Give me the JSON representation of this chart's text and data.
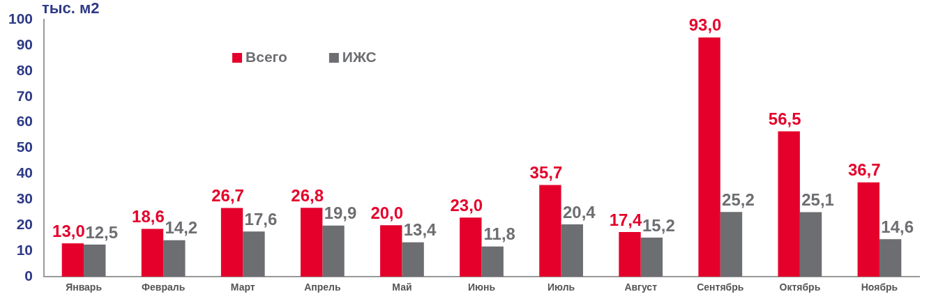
{
  "chart_data": {
    "type": "bar",
    "ylabel": "тыс. м2",
    "categories": [
      "Январь",
      "Февраль",
      "Март",
      "Апрель",
      "Май",
      "Июнь",
      "Июль",
      "Август",
      "Сентябрь",
      "Октябрь",
      "Ноябрь"
    ],
    "series": [
      {
        "name": "Всего",
        "color": "#e4002b",
        "values": [
          13.0,
          18.6,
          26.7,
          26.8,
          20.0,
          23.0,
          35.7,
          17.4,
          93.0,
          56.5,
          36.7
        ],
        "value_labels": [
          "13,0",
          "18,6",
          "26,7",
          "26,8",
          "20,0",
          "23,0",
          "35,7",
          "17,4",
          "93,0",
          "56,5",
          "36,7"
        ]
      },
      {
        "name": "ИЖС",
        "color": "#6d6e71",
        "values": [
          12.5,
          14.2,
          17.6,
          19.9,
          13.4,
          11.8,
          20.4,
          15.2,
          25.2,
          25.1,
          14.6
        ],
        "value_labels": [
          "12,5",
          "14,2",
          "17,6",
          "19,9",
          "13,4",
          "11,8",
          "20,4",
          "15,2",
          "25,2",
          "25,1",
          "14,6"
        ]
      }
    ],
    "ylim": [
      0,
      100
    ],
    "yticks": [
      0,
      10,
      20,
      30,
      40,
      50,
      60,
      70,
      80,
      90,
      100
    ],
    "grid": false,
    "legend": "top left"
  }
}
